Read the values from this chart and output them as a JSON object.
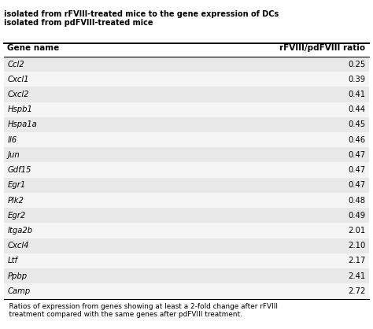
{
  "title_line1": "isolated from rFVIII-treated mice to the gene expression of DCs",
  "title_line2": "isolated from pdFVIII-treated mice",
  "col1_header": "Gene name",
  "col2_header": "rFVIII/pdFVIII ratio",
  "genes": [
    "Ccl2",
    "Cxcl1",
    "Cxcl2",
    "Hspb1",
    "Hspa1a",
    "Il6",
    "Jun",
    "Gdf15",
    "Egr1",
    "Plk2",
    "Egr2",
    "Itga2b",
    "Cxcl4",
    "Ltf",
    "Ppbp",
    "Camp"
  ],
  "ratios": [
    "0.25",
    "0.39",
    "0.41",
    "0.44",
    "0.45",
    "0.46",
    "0.47",
    "0.47",
    "0.47",
    "0.48",
    "0.49",
    "2.01",
    "2.10",
    "2.17",
    "2.41",
    "2.72"
  ],
  "footer": "    Ratios of expression from genes showing at least a 2-fold change after rFVIII\n    treatment compared with the same genes after pdFVIII treatment.",
  "row_color_even": "#e8e8e8",
  "row_color_odd": "#f5f5f5",
  "bg_color": "#ffffff",
  "title_color": "#000000",
  "header_text_color": "#000000",
  "row_text_color": "#000000"
}
